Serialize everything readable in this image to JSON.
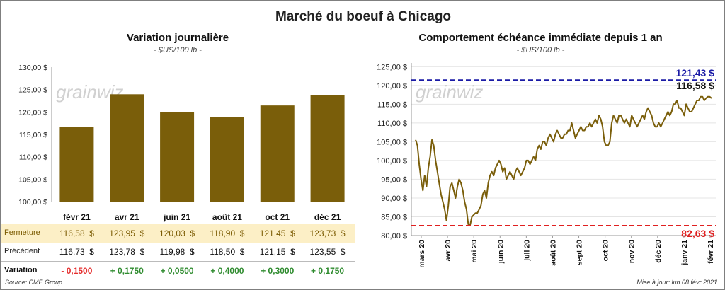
{
  "title": "Marché du boeuf à Chicago",
  "left_panel": {
    "title": "Variation  journalière",
    "subtitle": "- $US/100 lb -",
    "watermark": "grainwiz"
  },
  "right_panel": {
    "title": "Comportement  échéance immédiate depuis 1 an",
    "subtitle": "- $US/100 lb -",
    "watermark": "grainwiz"
  },
  "table": {
    "rows": [
      {
        "label": "Fermeture",
        "values": [
          "116,58  $",
          "123,95  $",
          "120,03  $",
          "118,90  $",
          "121,45  $",
          "123,73  $"
        ]
      },
      {
        "label": "Précédent",
        "values": [
          "116,73  $",
          "123,78  $",
          "119,98  $",
          "118,50  $",
          "121,15  $",
          "123,55  $"
        ]
      },
      {
        "label": "Variation",
        "values": [
          "- 0,1500",
          "+ 0,1750",
          "+ 0,0500",
          "+ 0,4000",
          "+ 0,3000",
          "+ 0,1750"
        ]
      }
    ]
  },
  "footer": {
    "source": "Source: CME Group",
    "update": "Mise à jour: lun 08 févr 2021"
  },
  "colors": {
    "bar": "#7a5e0a",
    "line": "#7a5e0a",
    "max_line": "#1a1aa6",
    "min_line": "#e02020",
    "close_row_bg": "#fcefc6",
    "negative": "#e53030",
    "positive": "#2e8b2e"
  },
  "chart_data": [
    {
      "type": "bar",
      "categories": [
        "févr 21",
        "avr 21",
        "juin 21",
        "août 21",
        "oct 21",
        "déc 21"
      ],
      "values": [
        116.58,
        123.95,
        120.03,
        118.9,
        121.45,
        123.73
      ],
      "ylim": [
        100,
        130
      ],
      "yticks": [
        100,
        105,
        110,
        115,
        120,
        125,
        130
      ],
      "ytick_labels": [
        "100,00 $",
        "105,00 $",
        "110,00 $",
        "115,00 $",
        "120,00 $",
        "125,00 $",
        "130,00 $"
      ],
      "grid": false
    },
    {
      "type": "line",
      "x_labels": [
        "mars 20",
        "avr 20",
        "mai 20",
        "juin 20",
        "juil 20",
        "août 20",
        "sept 20",
        "oct 20",
        "nov 20",
        "déc 20",
        "janv 21",
        "févr 21"
      ],
      "series": [
        {
          "values": [
            105.5,
            104,
            99,
            95,
            92,
            96,
            93,
            98,
            101,
            105.5,
            104,
            100,
            97,
            94,
            91,
            89,
            87,
            84,
            88,
            93,
            94,
            92,
            90,
            93,
            95,
            94,
            92,
            89,
            87,
            83,
            82.7,
            85,
            85.5,
            86,
            86,
            87,
            88,
            91,
            92,
            90,
            94,
            96,
            97,
            96,
            98,
            99,
            100,
            99,
            97,
            98,
            95,
            96,
            97,
            96,
            95,
            97,
            98,
            97,
            96,
            97,
            98,
            100,
            100,
            99,
            100,
            101,
            100,
            103,
            104,
            103,
            105,
            105,
            104,
            106,
            107,
            106,
            105,
            107,
            108,
            107,
            106,
            106,
            107,
            107,
            108,
            108,
            110,
            108,
            106,
            107,
            108,
            109,
            108,
            108,
            109,
            109,
            110,
            109,
            110,
            111,
            110,
            112,
            111,
            109,
            105,
            104,
            104,
            105,
            110,
            112,
            111,
            110,
            112,
            112,
            111,
            110,
            111,
            110,
            109,
            112,
            111,
            110,
            109,
            110,
            111,
            112,
            111,
            113,
            114,
            113,
            112,
            110,
            109,
            109,
            110,
            109,
            110,
            111,
            112,
            113,
            112,
            113,
            115,
            115,
            116,
            114,
            114,
            113,
            112,
            115,
            114,
            113,
            113,
            114,
            115,
            116,
            116,
            117,
            117,
            116,
            116.6,
            117,
            117,
            116.58
          ]
        }
      ],
      "ylim": [
        80,
        126
      ],
      "yticks": [
        80,
        85,
        90,
        95,
        100,
        105,
        110,
        115,
        120,
        125
      ],
      "ytick_labels": [
        "80,00 $",
        "85,00 $",
        "90,00 $",
        "95,00 $",
        "100,00 $",
        "105,00 $",
        "110,00 $",
        "115,00 $",
        "120,00 $",
        "125,00 $"
      ],
      "max_line": {
        "value": 121.43,
        "label": "121,43 $"
      },
      "min_line": {
        "value": 82.63,
        "label": "82,63 $"
      },
      "last_label": "116,58 $",
      "grid": true
    }
  ]
}
